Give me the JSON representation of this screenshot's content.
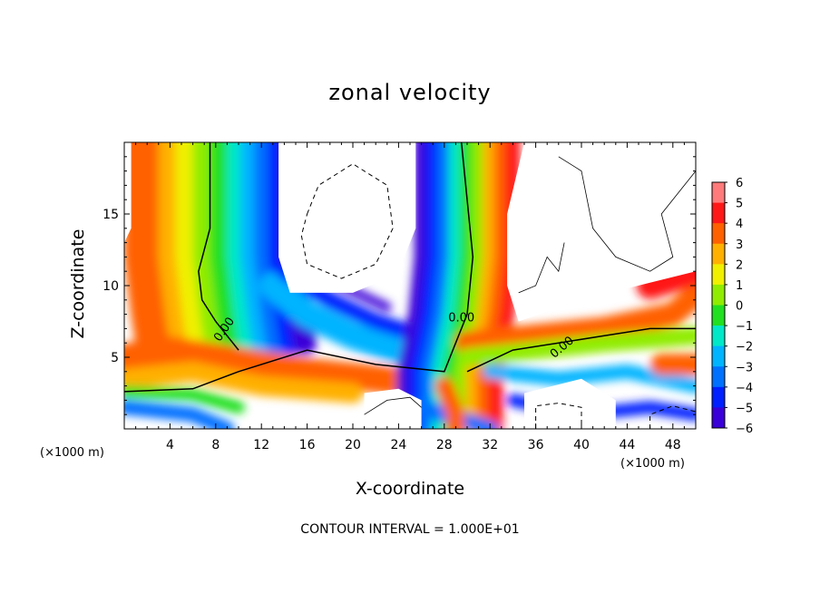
{
  "chart_data": {
    "type": "heatmap",
    "title": "zonal velocity",
    "xlabel": "X-coordinate",
    "ylabel": "Z-coordinate",
    "x_unit": "(×1000 m)",
    "y_unit": "(×1000 m)",
    "xlim": [
      0,
      50
    ],
    "ylim": [
      0,
      20
    ],
    "x_ticks": [
      4,
      8,
      12,
      16,
      20,
      24,
      28,
      32,
      36,
      40,
      44,
      48
    ],
    "y_ticks": [
      5,
      10,
      15
    ],
    "colorbar": {
      "range": [
        -6,
        6
      ],
      "ticks": [
        6,
        5,
        4,
        3,
        2,
        1,
        0,
        -1,
        -2,
        -3,
        -4,
        -5,
        -6
      ],
      "colors": [
        "#7a0fa0",
        "#3a00d8",
        "#0020ff",
        "#0070ff",
        "#00b4ff",
        "#00e8c8",
        "#20e020",
        "#90ec00",
        "#f0f000",
        "#ffb000",
        "#ff6000",
        "#ff1818",
        "#ff7a7a"
      ]
    },
    "contour_labels": [
      "0.00",
      "0.00",
      "0.00"
    ],
    "grid": false,
    "legend": "colorbar right"
  },
  "footnote": "CONTOUR INTERVAL = 1.000E+01"
}
